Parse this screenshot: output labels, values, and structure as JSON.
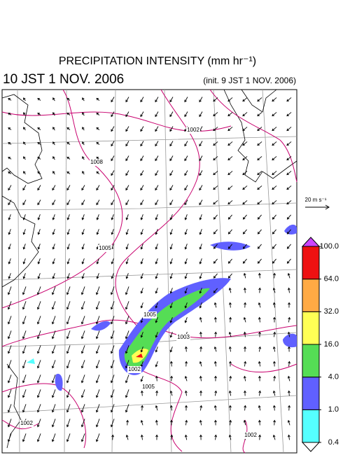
{
  "header": {
    "title": "PRECIPITATION INTENSITY (mm hr⁻¹)",
    "valid_time": "10 JST 1 NOV. 2006",
    "init_time": "(init. 9 JST 1 NOV. 2006)"
  },
  "reference_vector": {
    "label": "20 m s⁻¹"
  },
  "colorbar": {
    "levels": [
      {
        "value": 0.4,
        "label": "0.4"
      },
      {
        "value": 1,
        "label": "1.0"
      },
      {
        "value": 4,
        "label": "4.0"
      },
      {
        "value": 16,
        "label": "16.0"
      },
      {
        "value": 32,
        "label": "32.0"
      },
      {
        "value": 64,
        "label": "64.0"
      },
      {
        "value": 100,
        "label": "100.0"
      }
    ],
    "colors": [
      "#55ffff",
      "#6060ff",
      "#55dd55",
      "#ffff55",
      "#ffaa44",
      "#ee1111"
    ],
    "under_color": "#ffffff",
    "over_color": "#cc44ff"
  },
  "contour_labels": [
    "1002",
    "1008",
    "1005",
    "1005",
    "1003",
    "1002",
    "1005",
    "1002",
    "1002"
  ]
}
